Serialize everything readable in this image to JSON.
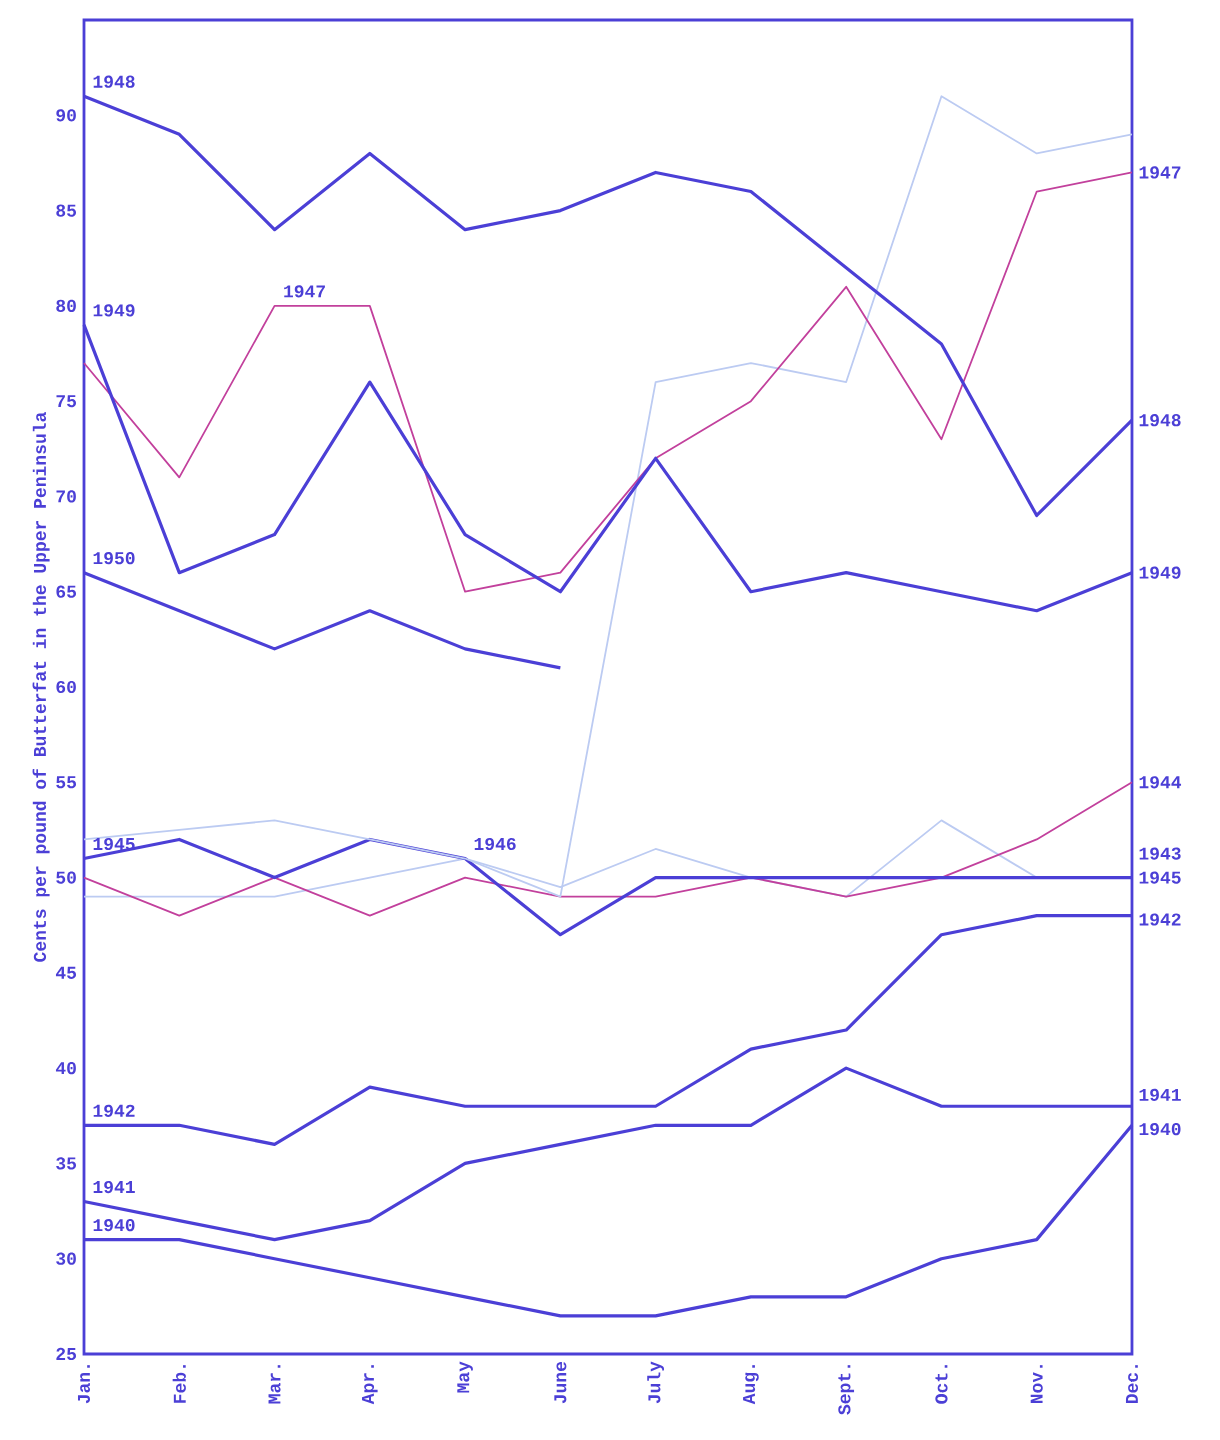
{
  "chart_data": {
    "type": "line",
    "ylabel": "Cents per pound of Butterfat in the Upper Peninsula",
    "categories": [
      "Jan.",
      "Feb.",
      "Mar.",
      "Apr.",
      "May",
      "June",
      "July",
      "Aug.",
      "Sept.",
      "Oct.",
      "Nov.",
      "Dec."
    ],
    "ylim": [
      25,
      95
    ],
    "yticks": [
      25,
      30,
      35,
      40,
      45,
      50,
      55,
      60,
      65,
      70,
      75,
      80,
      85,
      90
    ],
    "grid": false,
    "marker": "none",
    "line_style": "solid",
    "series": [
      {
        "color": "#4b3fd6",
        "values": [
          31,
          31,
          30,
          29,
          28,
          27,
          27,
          28,
          28,
          30,
          31,
          37
        ]
      },
      {
        "color": "#4b3fd6",
        "values": [
          33,
          32,
          31,
          32,
          35,
          36,
          37,
          37,
          40,
          38,
          38,
          38
        ]
      },
      {
        "color": "#4b3fd6",
        "values": [
          37,
          37,
          36,
          39,
          38,
          38,
          38,
          41,
          42,
          47,
          48,
          48
        ]
      },
      {
        "color": "#bccbf2",
        "values": [
          49,
          49,
          49,
          50,
          51,
          49.5,
          51.5,
          50,
          49,
          53,
          50,
          50
        ]
      },
      {
        "color": "#c2409c",
        "values": [
          50,
          48,
          50,
          48,
          50,
          49,
          49,
          50,
          49,
          50,
          52,
          55
        ]
      },
      {
        "color": "#4b3fd6",
        "values": [
          51,
          52,
          50,
          52,
          51,
          47,
          50,
          50,
          50,
          50,
          50,
          50
        ]
      },
      {
        "color": "#bccbf2",
        "values": [
          52,
          52.5,
          53,
          52,
          51,
          49,
          76,
          77,
          76,
          91,
          88,
          89
        ]
      },
      {
        "color": "#c2409c",
        "values": [
          77,
          71,
          80,
          80,
          65,
          66,
          72,
          75,
          81,
          73,
          86,
          87
        ]
      },
      {
        "color": "#4b3fd6",
        "values": [
          91,
          89,
          84,
          88,
          84,
          85,
          87,
          86,
          82,
          78,
          69,
          74
        ]
      },
      {
        "color": "#4b3fd6",
        "values": [
          79,
          66,
          68,
          76,
          68,
          65,
          72,
          65,
          66,
          65,
          64,
          66
        ]
      },
      {
        "color": "#4b3fd6",
        "values": [
          66,
          64,
          62,
          64,
          62,
          61,
          null,
          null,
          null,
          null,
          null,
          null
        ]
      }
    ],
    "annotations": [
      {
        "text": "1948",
        "x": "Jan.",
        "y": 91
      },
      {
        "text": "1949",
        "x": "Jan.",
        "y": 79
      },
      {
        "text": "1950",
        "x": "Jan.",
        "y": 66
      },
      {
        "text": "1945",
        "x": "Jan.",
        "y": 51
      },
      {
        "text": "1942",
        "x": "Jan.",
        "y": 37
      },
      {
        "text": "1941",
        "x": "Jan.",
        "y": 33
      },
      {
        "text": "1940",
        "x": "Jan.",
        "y": 31
      },
      {
        "text": "1947",
        "x": "Mar.",
        "y": 80
      },
      {
        "text": "1946",
        "x": "May",
        "y": 51
      },
      {
        "text": "1947",
        "x": "Dec.",
        "y": 87
      },
      {
        "text": "1948",
        "x": "Dec.",
        "y": 74
      },
      {
        "text": "1949",
        "x": "Dec.",
        "y": 66
      },
      {
        "text": "1944",
        "x": "Dec.",
        "y": 55
      },
      {
        "text": "1945",
        "x": "Dec.",
        "y": 50
      },
      {
        "text": "1943",
        "x": "Dec.",
        "y": 50
      },
      {
        "text": "1942",
        "x": "Dec.",
        "y": 47.8
      },
      {
        "text": "1941",
        "x": "Dec.",
        "y": 38.6
      },
      {
        "text": "1940",
        "x": "Dec.",
        "y": 36.8
      }
    ]
  }
}
